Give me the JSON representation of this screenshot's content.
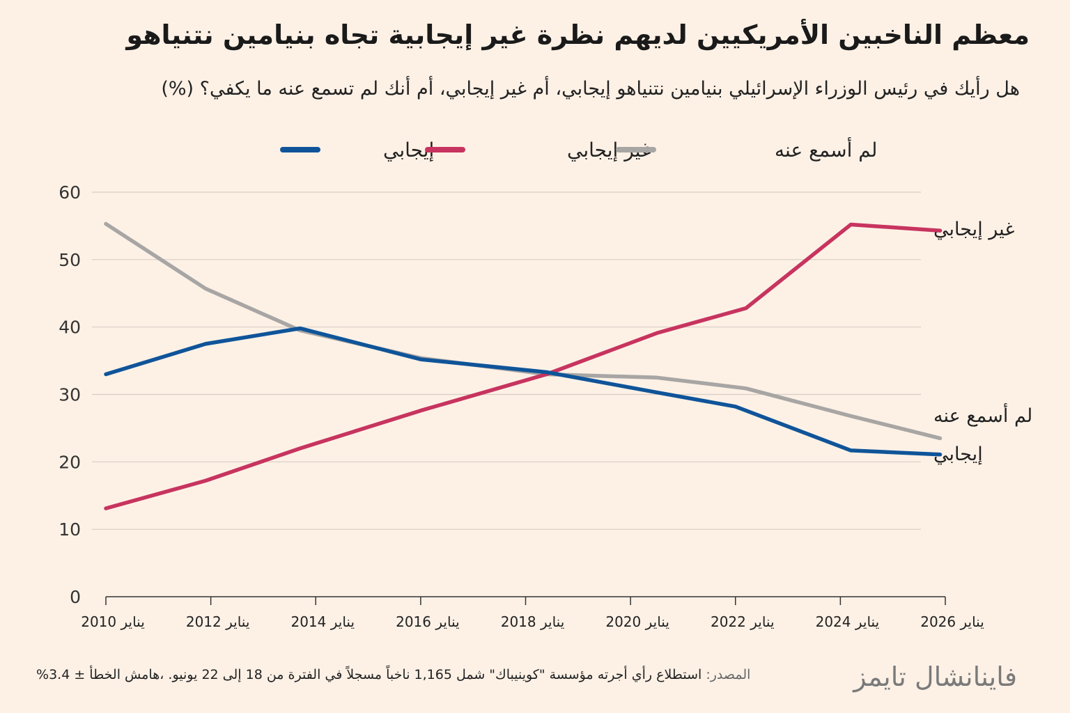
{
  "header": {
    "title": "معظم الناخبين الأمريكيين لديهم نظرة غير إيجابية تجاه بنيامين نتنياهو",
    "subtitle": "هل رأيك في رئيس الوزراء الإسرائيلي بنيامين نتنياهو إيجابي، أم غير إيجابي، أم أنك لم تسمع عنه ما يكفي؟ (%)"
  },
  "footer": {
    "source_label": "المصدر:",
    "source_text": "استطلاع رأي أجرته مؤسسة \"كوينيباك\" شمل 1,165 ناخباً مسجلاً في الفترة من 18 إلى 22 يونيو. ،هامش الخطأ ± 3.4%",
    "brand": "فاينانشال تايمز"
  },
  "chart_data": {
    "type": "line",
    "title": "معظم الناخبين الأمريكيين لديهم نظرة غير إيجابية تجاه بنيامين نتنياهو",
    "xlabel": "",
    "ylabel": "",
    "xlim": [
      2010,
      2026
    ],
    "ylim": [
      0,
      60
    ],
    "y_ticks": [
      0,
      10,
      20,
      30,
      40,
      50,
      60
    ],
    "x_ticks": [
      {
        "value": 2010,
        "label": "يناير 2010"
      },
      {
        "value": 2012,
        "label": "يناير 2012"
      },
      {
        "value": 2014,
        "label": "يناير 2014"
      },
      {
        "value": 2016,
        "label": "يناير 2016"
      },
      {
        "value": 2018,
        "label": "يناير 2018"
      },
      {
        "value": 2020,
        "label": "يناير 2020"
      },
      {
        "value": 2022,
        "label": "يناير 2022"
      },
      {
        "value": 2024,
        "label": "يناير 2024"
      },
      {
        "value": 2026,
        "label": "يناير 2026"
      }
    ],
    "grid": true,
    "legend_position": "top",
    "series": [
      {
        "name": "إيجابي",
        "color": "#0f5499",
        "points": [
          [
            2010.0,
            33
          ],
          [
            2011.9,
            37.5
          ],
          [
            2013.7,
            39.8
          ],
          [
            2016.0,
            35.2
          ],
          [
            2018.4,
            33.3
          ],
          [
            2020.5,
            30.3
          ],
          [
            2022.0,
            28.2
          ],
          [
            2024.2,
            21.7
          ],
          [
            2025.9,
            21.1
          ]
        ]
      },
      {
        "name": "غير إيجابي",
        "color": "#c7345f",
        "points": [
          [
            2010.0,
            13.1
          ],
          [
            2011.9,
            17.2
          ],
          [
            2013.7,
            22.0
          ],
          [
            2016.0,
            27.6
          ],
          [
            2018.4,
            33.0
          ],
          [
            2020.5,
            39.1
          ],
          [
            2022.2,
            42.8
          ],
          [
            2024.2,
            55.2
          ],
          [
            2025.9,
            54.3
          ]
        ]
      },
      {
        "name": "لم أسمع عنه",
        "color": "#a8a6a4",
        "points": [
          [
            2010.0,
            55.3
          ],
          [
            2011.9,
            45.7
          ],
          [
            2013.7,
            39.5
          ],
          [
            2016.0,
            35.4
          ],
          [
            2018.4,
            33.0
          ],
          [
            2020.5,
            32.5
          ],
          [
            2022.2,
            30.9
          ],
          [
            2024.2,
            26.8
          ],
          [
            2025.9,
            23.5
          ]
        ]
      }
    ],
    "end_labels": [
      {
        "series": "غير إيجابي",
        "text": "غير إيجابي"
      },
      {
        "series": "لم أسمع عنه",
        "text": "لم أسمع عنه"
      },
      {
        "series": "إيجابي",
        "text": "إيجابي"
      }
    ]
  }
}
